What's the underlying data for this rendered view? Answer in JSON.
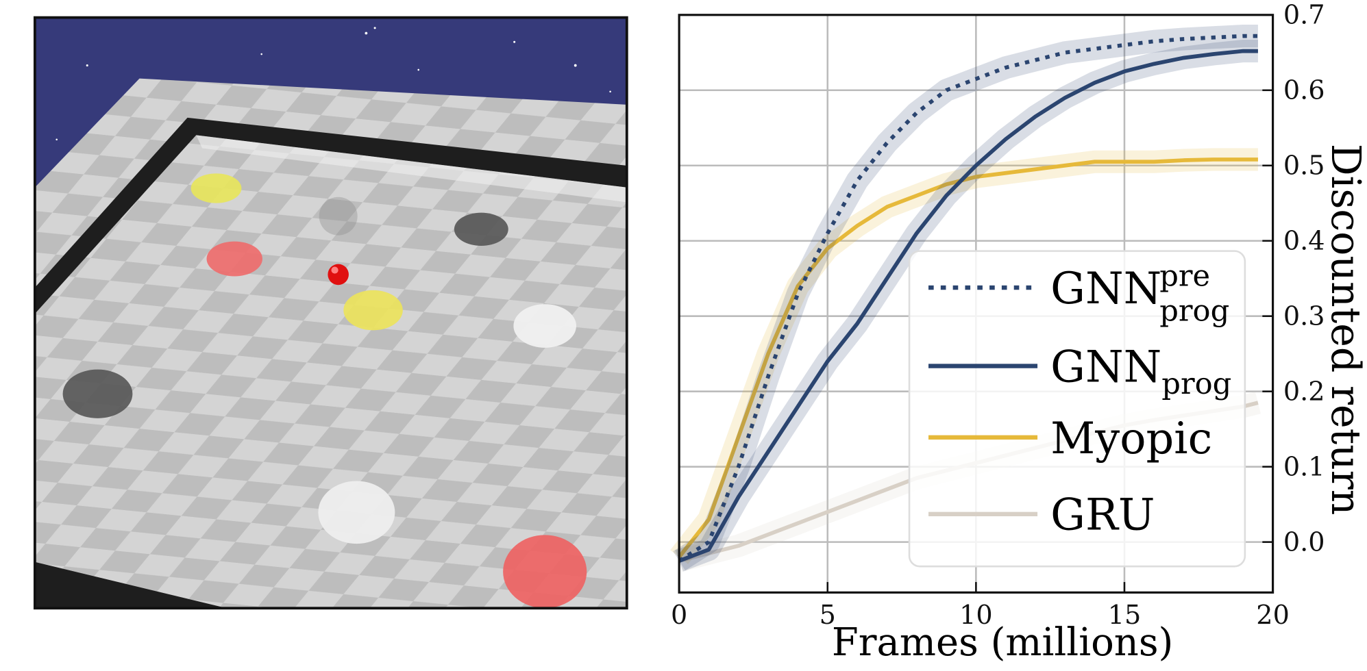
{
  "chart_data": {
    "type": "line",
    "x_label": "Frames (millions)",
    "y_label": "Discounted return",
    "xlim": [
      0,
      20
    ],
    "ylim": [
      -0.067,
      0.7
    ],
    "xticks": [
      0,
      5,
      10,
      15,
      20
    ],
    "yticks": [
      {
        "value": 0,
        "label": "0.0"
      },
      0.1,
      0.2,
      0.3,
      0.4,
      0.5,
      0.6,
      0.7
    ],
    "y_axis_side": "right",
    "grid": true,
    "legend": "lower right",
    "x": [
      0,
      1,
      2,
      3,
      4,
      5,
      6,
      7,
      8,
      9,
      10,
      11,
      12,
      13,
      14,
      15,
      16,
      17,
      18,
      19,
      19.5
    ],
    "series": [
      {
        "name": "GNN",
        "name_sup": "pre",
        "name_sub": "prog",
        "color": "#2b4570",
        "style": "dotted",
        "values": [
          -0.025,
          0.0,
          0.1,
          0.22,
          0.33,
          0.41,
          0.48,
          0.53,
          0.57,
          0.6,
          0.615,
          0.63,
          0.64,
          0.65,
          0.655,
          0.66,
          0.665,
          0.668,
          0.67,
          0.672,
          0.672
        ]
      },
      {
        "name": "GNN",
        "name_sub": "prog",
        "color": "#2b4570",
        "style": "solid",
        "values": [
          -0.025,
          -0.01,
          0.06,
          0.12,
          0.18,
          0.24,
          0.29,
          0.35,
          0.41,
          0.46,
          0.5,
          0.535,
          0.565,
          0.59,
          0.61,
          0.625,
          0.635,
          0.643,
          0.648,
          0.652,
          0.652
        ]
      },
      {
        "name": "Myopic",
        "color": "#e6b93a",
        "style": "solid",
        "values": [
          -0.02,
          0.03,
          0.14,
          0.25,
          0.34,
          0.39,
          0.42,
          0.445,
          0.46,
          0.475,
          0.485,
          0.49,
          0.495,
          0.5,
          0.505,
          0.505,
          0.505,
          0.507,
          0.508,
          0.508,
          0.508
        ]
      },
      {
        "name": "GRU",
        "color": "#d8d0c6",
        "style": "solid",
        "values": [
          -0.025,
          -0.015,
          -0.005,
          0.01,
          0.025,
          0.04,
          0.055,
          0.07,
          0.085,
          0.095,
          0.105,
          0.115,
          0.125,
          0.135,
          0.145,
          0.155,
          0.162,
          0.168,
          0.174,
          0.18,
          0.185
        ]
      }
    ]
  }
}
